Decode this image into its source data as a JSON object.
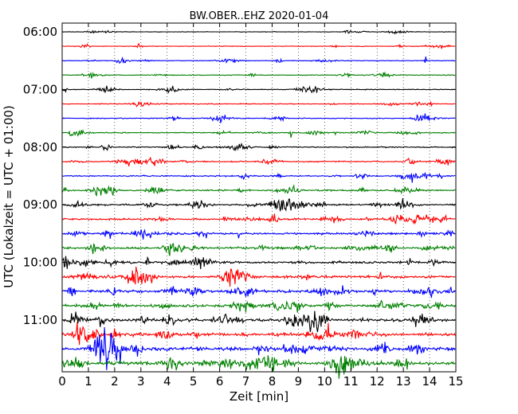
{
  "chart_data": {
    "type": "line",
    "title": "BW.OBER..EHZ 2020-01-04",
    "xlabel": "Zeit  [min]",
    "ylabel": "UTC (Lokalzeit = UTC + 01:00)",
    "xlim": [
      0,
      15
    ],
    "x_ticks": [
      "0",
      "1",
      "2",
      "3",
      "4",
      "5",
      "6",
      "7",
      "8",
      "9",
      "10",
      "11",
      "12",
      "13",
      "14",
      "15"
    ],
    "y_ticks": [
      "06:00",
      "07:00",
      "08:00",
      "09:00",
      "10:00",
      "11:00"
    ],
    "trace_count": 24,
    "trace_interval_min": 15,
    "first_trace_utc": "06:00",
    "grid": "vertical-dotted",
    "trace_colors": [
      "#000000",
      "#ff0000",
      "#0000ff",
      "#008000"
    ]
  }
}
